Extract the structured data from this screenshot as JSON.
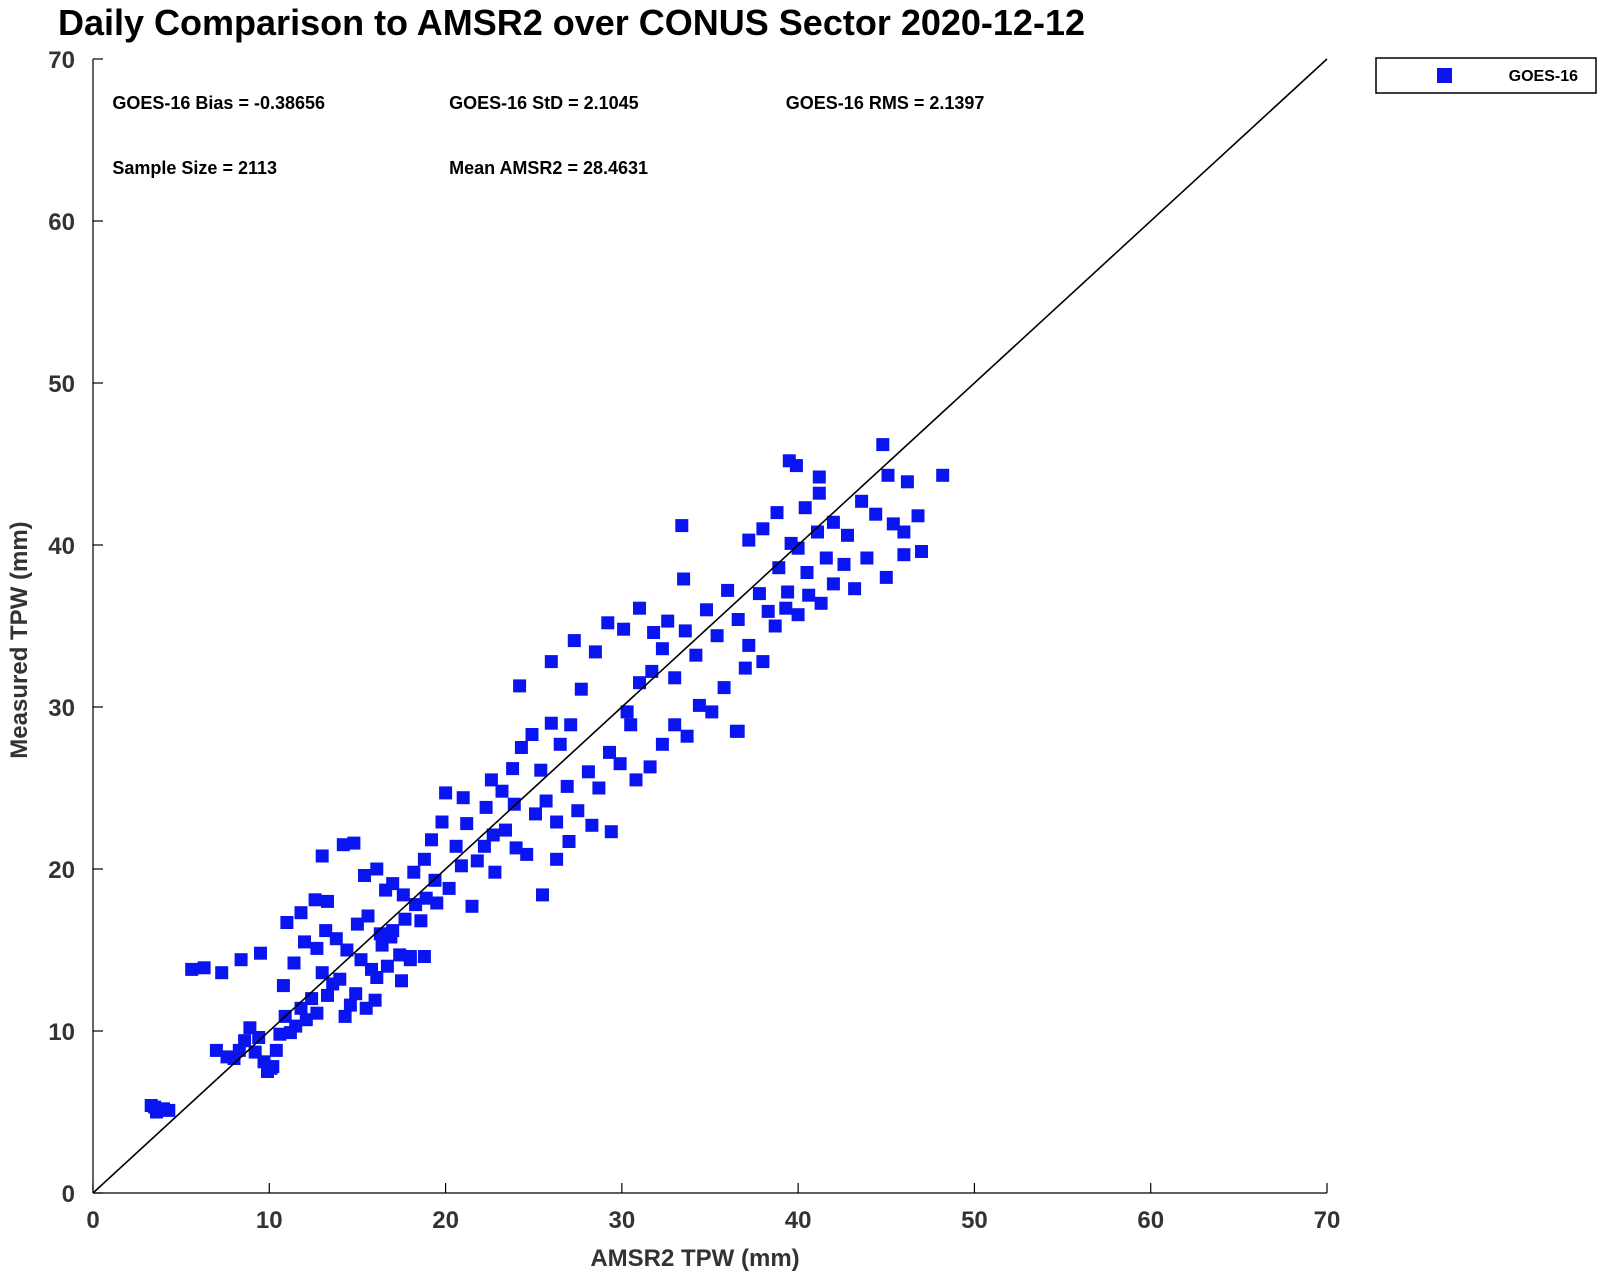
{
  "chart_data": {
    "type": "scatter",
    "title": "Daily Comparison to AMSR2 over CONUS Sector 2020-12-12",
    "xlabel": "AMSR2 TPW (mm)",
    "ylabel": "Measured TPW (mm)",
    "xlim": [
      0,
      70
    ],
    "ylim": [
      0,
      70
    ],
    "xticks": [
      "0",
      "10",
      "20",
      "30",
      "40",
      "50",
      "60",
      "70"
    ],
    "yticks": [
      "0",
      "10",
      "20",
      "30",
      "40",
      "50",
      "60",
      "70"
    ],
    "grid": false,
    "legend_position": "top-right outside",
    "reference_line": {
      "x": [
        0,
        70
      ],
      "y": [
        0,
        70
      ],
      "color": "#000000"
    },
    "stats": [
      "GOES-16 Bias = -0.38656",
      "GOES-16 StD = 2.1045",
      "GOES-16 RMS = 2.1397",
      "Sample Size = 2113",
      "Mean AMSR2 = 28.4631"
    ],
    "series": [
      {
        "name": "GOES-16",
        "color": "#0a14f0",
        "marker": "square",
        "points": [
          [
            3.3,
            5.4
          ],
          [
            3.6,
            5.0
          ],
          [
            4.0,
            5.2
          ],
          [
            4.3,
            5.1
          ],
          [
            3.5,
            5.3
          ],
          [
            5.6,
            13.8
          ],
          [
            6.3,
            13.9
          ],
          [
            7.3,
            13.6
          ],
          [
            8.4,
            14.4
          ],
          [
            9.5,
            14.8
          ],
          [
            7.0,
            8.8
          ],
          [
            7.6,
            8.4
          ],
          [
            8.0,
            8.3
          ],
          [
            8.3,
            8.8
          ],
          [
            8.6,
            9.4
          ],
          [
            8.9,
            10.2
          ],
          [
            9.2,
            8.7
          ],
          [
            9.4,
            9.6
          ],
          [
            9.7,
            8.1
          ],
          [
            9.9,
            7.5
          ],
          [
            10.1,
            7.7
          ],
          [
            10.2,
            7.8
          ],
          [
            10.4,
            8.8
          ],
          [
            10.6,
            9.8
          ],
          [
            10.9,
            10.9
          ],
          [
            11.2,
            9.9
          ],
          [
            11.5,
            10.3
          ],
          [
            11.8,
            11.4
          ],
          [
            12.1,
            10.7
          ],
          [
            12.4,
            12.0
          ],
          [
            12.7,
            11.1
          ],
          [
            13.0,
            13.6
          ],
          [
            13.3,
            12.2
          ],
          [
            13.6,
            12.9
          ],
          [
            14.0,
            13.2
          ],
          [
            14.3,
            10.9
          ],
          [
            14.6,
            11.6
          ],
          [
            14.9,
            12.3
          ],
          [
            15.2,
            14.4
          ],
          [
            15.5,
            11.4
          ],
          [
            15.8,
            13.8
          ],
          [
            16.1,
            13.3
          ],
          [
            16.4,
            15.3
          ],
          [
            16.7,
            14.0
          ],
          [
            17.0,
            16.2
          ],
          [
            17.4,
            14.7
          ],
          [
            17.7,
            16.9
          ],
          [
            18.0,
            14.6
          ],
          [
            18.3,
            17.8
          ],
          [
            18.6,
            16.8
          ],
          [
            11.0,
            16.7
          ],
          [
            11.8,
            17.3
          ],
          [
            12.6,
            18.1
          ],
          [
            13.3,
            18.0
          ],
          [
            13.0,
            20.8
          ],
          [
            14.2,
            21.5
          ],
          [
            14.8,
            21.6
          ],
          [
            15.4,
            19.6
          ],
          [
            16.1,
            20.0
          ],
          [
            16.6,
            18.7
          ],
          [
            10.8,
            12.8
          ],
          [
            11.4,
            14.2
          ],
          [
            12.0,
            15.5
          ],
          [
            12.7,
            15.1
          ],
          [
            13.2,
            16.2
          ],
          [
            13.8,
            15.7
          ],
          [
            14.4,
            15.0
          ],
          [
            15.0,
            16.6
          ],
          [
            15.6,
            17.1
          ],
          [
            16.3,
            16.0
          ],
          [
            17.0,
            19.1
          ],
          [
            17.6,
            18.4
          ],
          [
            18.2,
            19.8
          ],
          [
            18.8,
            20.6
          ],
          [
            19.4,
            19.3
          ],
          [
            20.0,
            24.7
          ],
          [
            20.6,
            21.4
          ],
          [
            21.2,
            22.8
          ],
          [
            21.8,
            20.5
          ],
          [
            22.3,
            23.8
          ],
          [
            18.9,
            18.2
          ],
          [
            19.5,
            17.9
          ],
          [
            20.2,
            18.8
          ],
          [
            20.9,
            20.2
          ],
          [
            21.5,
            17.7
          ],
          [
            22.2,
            21.4
          ],
          [
            22.8,
            19.8
          ],
          [
            23.4,
            22.4
          ],
          [
            24.0,
            21.3
          ],
          [
            24.6,
            20.9
          ],
          [
            22.6,
            25.5
          ],
          [
            23.2,
            24.8
          ],
          [
            23.8,
            26.2
          ],
          [
            24.3,
            27.5
          ],
          [
            24.9,
            28.3
          ],
          [
            25.4,
            26.1
          ],
          [
            26.0,
            29.0
          ],
          [
            26.5,
            27.7
          ],
          [
            27.1,
            28.9
          ],
          [
            27.7,
            31.1
          ],
          [
            25.1,
            23.4
          ],
          [
            25.7,
            24.2
          ],
          [
            26.3,
            22.9
          ],
          [
            26.9,
            25.1
          ],
          [
            27.5,
            23.6
          ],
          [
            28.1,
            26.0
          ],
          [
            28.7,
            25.0
          ],
          [
            29.3,
            27.2
          ],
          [
            29.9,
            26.5
          ],
          [
            30.5,
            28.9
          ],
          [
            24.2,
            31.3
          ],
          [
            26.0,
            32.8
          ],
          [
            27.3,
            34.1
          ],
          [
            28.5,
            33.4
          ],
          [
            29.2,
            35.2
          ],
          [
            30.1,
            34.8
          ],
          [
            31.0,
            36.1
          ],
          [
            31.8,
            34.6
          ],
          [
            32.6,
            35.3
          ],
          [
            33.5,
            37.9
          ],
          [
            25.5,
            18.4
          ],
          [
            26.3,
            20.6
          ],
          [
            27.0,
            21.7
          ],
          [
            28.3,
            22.7
          ],
          [
            29.4,
            22.3
          ],
          [
            30.3,
            29.7
          ],
          [
            31.0,
            31.5
          ],
          [
            31.7,
            32.2
          ],
          [
            32.3,
            33.6
          ],
          [
            33.0,
            31.8
          ],
          [
            33.6,
            34.7
          ],
          [
            34.2,
            33.2
          ],
          [
            34.8,
            36.0
          ],
          [
            35.4,
            34.4
          ],
          [
            36.0,
            37.2
          ],
          [
            30.8,
            25.5
          ],
          [
            31.6,
            26.3
          ],
          [
            32.3,
            27.7
          ],
          [
            33.0,
            28.9
          ],
          [
            33.7,
            28.2
          ],
          [
            34.4,
            30.1
          ],
          [
            35.1,
            29.7
          ],
          [
            35.8,
            31.2
          ],
          [
            36.5,
            28.5
          ],
          [
            37.0,
            32.4
          ],
          [
            36.6,
            35.4
          ],
          [
            37.2,
            33.8
          ],
          [
            37.8,
            37.0
          ],
          [
            38.3,
            35.9
          ],
          [
            38.9,
            38.6
          ],
          [
            39.4,
            37.1
          ],
          [
            40.0,
            39.8
          ],
          [
            40.5,
            38.3
          ],
          [
            41.1,
            40.8
          ],
          [
            41.6,
            39.2
          ],
          [
            38.0,
            32.8
          ],
          [
            38.7,
            35.0
          ],
          [
            39.3,
            36.1
          ],
          [
            40.0,
            35.7
          ],
          [
            40.6,
            36.9
          ],
          [
            41.3,
            36.4
          ],
          [
            42.0,
            37.6
          ],
          [
            42.6,
            38.8
          ],
          [
            43.2,
            37.3
          ],
          [
            43.9,
            39.2
          ],
          [
            37.2,
            40.3
          ],
          [
            38.0,
            41.0
          ],
          [
            38.8,
            42.0
          ],
          [
            39.6,
            40.1
          ],
          [
            40.4,
            42.3
          ],
          [
            41.2,
            43.2
          ],
          [
            42.0,
            41.4
          ],
          [
            42.8,
            40.6
          ],
          [
            43.6,
            42.7
          ],
          [
            44.4,
            41.9
          ],
          [
            39.5,
            45.2
          ],
          [
            39.9,
            44.9
          ],
          [
            41.2,
            44.2
          ],
          [
            44.8,
            46.2
          ],
          [
            45.1,
            44.3
          ],
          [
            46.2,
            43.9
          ],
          [
            48.2,
            44.3
          ],
          [
            45.4,
            41.3
          ],
          [
            46.0,
            40.8
          ],
          [
            46.8,
            41.8
          ],
          [
            45.0,
            38.0
          ],
          [
            46.0,
            39.4
          ],
          [
            47.0,
            39.6
          ],
          [
            33.4,
            41.2
          ],
          [
            36.6,
            28.5
          ],
          [
            17.5,
            13.1
          ],
          [
            18.0,
            14.4
          ],
          [
            18.8,
            14.6
          ],
          [
            16.0,
            11.9
          ],
          [
            16.9,
            15.8
          ],
          [
            19.2,
            21.8
          ],
          [
            19.8,
            22.9
          ],
          [
            21.0,
            24.4
          ],
          [
            22.7,
            22.1
          ],
          [
            23.9,
            24.0
          ]
        ]
      }
    ]
  }
}
